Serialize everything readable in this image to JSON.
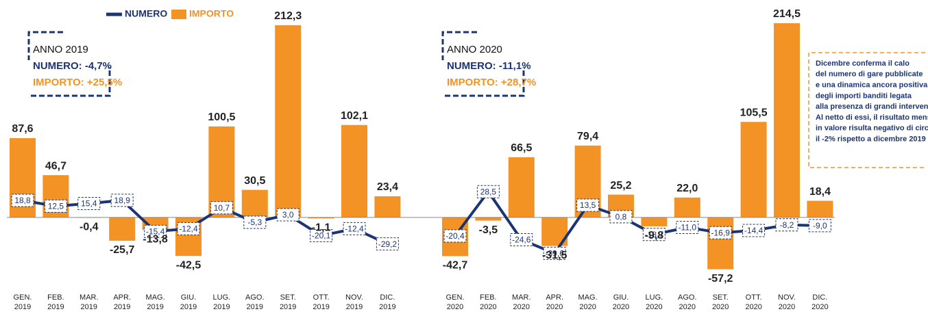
{
  "chart_data": {
    "type": "bar",
    "categories": [
      "GEN. 2019",
      "FEB. 2019",
      "MAR. 2019",
      "APR. 2019",
      "MAG. 2019",
      "GIU. 2019",
      "LUG. 2019",
      "AGO. 2019",
      "SET. 2019",
      "OTT. 2019",
      "NOV. 2019",
      "DIC. 2019",
      "GEN. 2020",
      "FEB. 2020",
      "MAR. 2020",
      "APR. 2020",
      "MAG. 2020",
      "GIU. 2020",
      "LUG. 2020",
      "AGO. 2020",
      "SET. 2020",
      "OTT. 2020",
      "NOV. 2020",
      "DIC. 2020"
    ],
    "series": [
      {
        "name": "NUMERO",
        "type": "line",
        "color": "#1b3473",
        "values": [
          18.8,
          12.5,
          15.4,
          18.9,
          -15.4,
          -12.4,
          10.7,
          -5.3,
          3.0,
          -20.1,
          -12.4,
          -29.2,
          -20.4,
          28.5,
          -24.6,
          -39.6,
          13.5,
          0.8,
          -18.7,
          -11.0,
          -16.9,
          -14.4,
          -8.2,
          -9.0
        ],
        "value_labels": [
          "18,8",
          "12,5",
          "15,4",
          "18,9",
          "-15,4",
          "-12,4",
          "10,7",
          "-5,3",
          "3,0",
          "-20,1",
          "-12,4",
          "-29,2",
          "-20,4",
          "28,5",
          "-24,6",
          "-39,6",
          "13,5",
          "0,8",
          "-18,7",
          "-11,0",
          "-16,9",
          "-14,4",
          "-8,2",
          "-9,0"
        ]
      },
      {
        "name": "IMPORTO",
        "type": "bar",
        "color": "#f39325",
        "values": [
          87.6,
          46.7,
          -0.4,
          -25.7,
          -13.8,
          -42.5,
          100.5,
          30.5,
          212.3,
          -1.1,
          102.1,
          23.4,
          -42.7,
          -3.5,
          66.5,
          -31.5,
          79.4,
          25.2,
          -9.8,
          22.0,
          -57.2,
          105.5,
          214.5,
          18.4
        ],
        "value_labels": [
          "87,6",
          "46,7",
          "-0,4",
          "-25,7",
          "-13,8",
          "-42,5",
          "100,5",
          "30,5",
          "212,3",
          "-1,1",
          "102,1",
          "23,4",
          "-42,7",
          "-3,5",
          "66,5",
          "-31,5",
          "79,4",
          "25,2",
          "-9,8",
          "22,0",
          "-57,2",
          "105,5",
          "214,5",
          "18,4"
        ]
      }
    ],
    "ylim": [
      -65,
      225
    ],
    "summaries": [
      {
        "title": "ANNO 2019",
        "numero": "NUMERO: -4,7%",
        "importo": "IMPORTO: +25,5%"
      },
      {
        "title": "ANNO 2020",
        "numero": "NUMERO: -11,1%",
        "importo": "IMPORTO: +28,7%"
      }
    ],
    "note": [
      "Dicembre conferma il calo",
      "del numero di gare pubblicate",
      "e una dinamica ancora positiva",
      "degli importi banditi legata",
      "alla presenza di grandi interventi.",
      "Al netto di essi, il risultato mensile",
      "in valore risulta negativo di circa",
      "il -2% rispetto a dicembre 2019"
    ]
  }
}
